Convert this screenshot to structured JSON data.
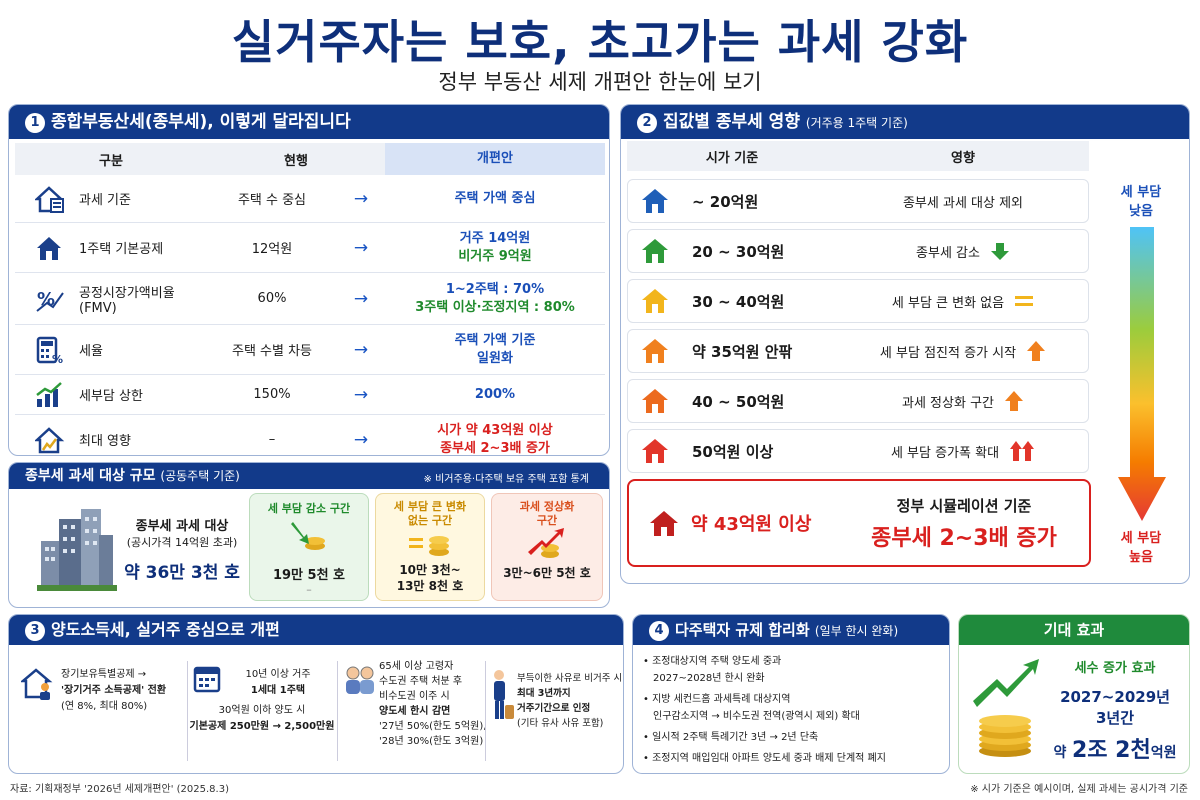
{
  "title": "실거주자는 보호, 초고가는 과세 강화",
  "subtitle": "정부 부동산 세제 개편안 한눈에 보기",
  "p1": {
    "num": "1",
    "title": "종합부동산세(종부세), 이렇게 달라집니다",
    "headers": [
      "구분",
      "현행",
      "개편안"
    ],
    "rows": [
      {
        "label": "과세 기준",
        "current": "주택 수 중심",
        "new1": "주택 가액 중심",
        "new2": "",
        "c1": "blue",
        "c2": "blue"
      },
      {
        "label": "1주택 기본공제",
        "current": "12억원",
        "new1": "거주 14억원",
        "new2": "비거주 9억원",
        "c1": "blue",
        "c2": "green"
      },
      {
        "label": "공정시장가액비율",
        "label2": "(FMV)",
        "current": "60%",
        "new1": "1~2주택 : 70%",
        "new2": "3주택 이상·조정지역 : 80%",
        "c1": "blue",
        "c2": "green"
      },
      {
        "label": "세율",
        "current": "주택 수별 차등",
        "new1": "주택 가액 기준",
        "new2": "일원화",
        "c1": "blue",
        "c2": "blue"
      },
      {
        "label": "세부담 상한",
        "current": "150%",
        "new1": "200%",
        "new2": "",
        "c1": "blue",
        "c2": "blue"
      },
      {
        "label": "최대 영향",
        "current": "–",
        "new1": "시가 약 43억원 이상",
        "new2": "종부세 2~3배 증가",
        "c1": "red",
        "c2": "red"
      }
    ],
    "arrow": "→"
  },
  "p2": {
    "num": "2",
    "title": "집값별 종부세 영향",
    "sub": "(거주용 1주택 기준)",
    "headers": [
      "시가 기준",
      "영향"
    ],
    "rows": [
      {
        "price": "~ 20억원",
        "effect": "종부세 과세 대상 제외",
        "color": "#1f5fb8",
        "mark": ""
      },
      {
        "price": "20 ~ 30억원",
        "effect": "종부세 감소",
        "color": "#2e9a3a",
        "mark": "down"
      },
      {
        "price": "30 ~ 40억원",
        "effect": "세 부담 큰 변화 없음",
        "color": "#f2b51c",
        "mark": "eq"
      },
      {
        "price": "약 35억원 안팎",
        "effect": "세 부담 점진적 증가 시작",
        "color": "#f0801e",
        "mark": "up"
      },
      {
        "price": "40 ~ 50억원",
        "effect": "과세 정상화 구간",
        "color": "#ec6a1e",
        "mark": "up"
      },
      {
        "price": "50억원 이상",
        "effect": "세 부담 증가폭 확대",
        "color": "#e2352a",
        "mark": "up2"
      }
    ],
    "highlight": {
      "price": "약 43억원 이상",
      "line1": "정부 시뮬레이션 기준",
      "line2": "종부세 2~3배 증가"
    },
    "scale_top1": "세 부담",
    "scale_top2": "낮음",
    "scale_bot1": "세 부담",
    "scale_bot2": "높음"
  },
  "scale": {
    "title": "종부세 과세 대상 규모",
    "sub": "(공동주택 기준)",
    "note": "※ 비거주용·다주택 보유 주택 포함 통계",
    "main1": "종부세 과세 대상",
    "main2": "(공시가격 14억원 초과)",
    "main3": "약 36만 3천 호",
    "b1t": "세 부담 감소 구간",
    "b1v": "19만 5천 호",
    "b1s": "–",
    "b2t1": "세 부담 큰 변화",
    "b2t2": "없는 구간",
    "b2v1": "10만 3천~",
    "b2v2": "13만 8천 호",
    "b3t1": "과세 정상화",
    "b3t2": "구간",
    "b3v": "3만~6만 5천 호"
  },
  "p3": {
    "num": "3",
    "title": "양도소득세, 실거주 중심으로 개편",
    "c1": [
      "장기보유특별공제 →",
      "'장기거주 소득공제' 전환",
      "(연 8%, 최대 80%)"
    ],
    "c2": [
      "10년 이상 거주",
      "1세대 1주택",
      "30억원 이하 양도 시",
      "기본공제 250만원 → 2,500만원"
    ],
    "c3": [
      "65세 이상 고령자",
      "수도권 주택 처분 후",
      "비수도권 이주 시",
      "양도세 한시 감면",
      "'27년 50%(한도 5억원),",
      "'28년 30%(한도 3억원)"
    ],
    "c4": [
      "부득이한 사유로 비거주 시",
      "최대 3년까지",
      "거주기간으로 인정",
      "(기타 유사 사유 포함)"
    ]
  },
  "p4": {
    "num": "4",
    "title": "다주택자 규제 합리화",
    "sub": "(일부 한시 완화)",
    "items": [
      {
        "a": "조정대상지역 주택 양도세 중과",
        "b": "2027~2028년 한시 완화"
      },
      {
        "a": "지방 세컨드홈 과세특례 대상지역",
        "b": "인구감소지역 → 비수도권 전역(광역시 제외) 확대"
      },
      {
        "a": "일시적 2주택 특례기간 3년 → 2년 단축",
        "b": ""
      },
      {
        "a": "조정지역 매입임대 아파트 양도세 중과 배제 단계적 폐지",
        "b": ""
      }
    ]
  },
  "p5": {
    "title": "기대 효과",
    "l1": "세수 증가 효과",
    "l2": "2027~2029년",
    "l3": "3년간",
    "l4a": "약",
    "l4b": "2조 2천",
    "l4c": "억원"
  },
  "source": "자료: 기획재정부 '2026년 세제개편안' (2025.8.3)",
  "footnote": "※ 시가 기준은 예시이며, 실제 과세는 공시가격 기준"
}
